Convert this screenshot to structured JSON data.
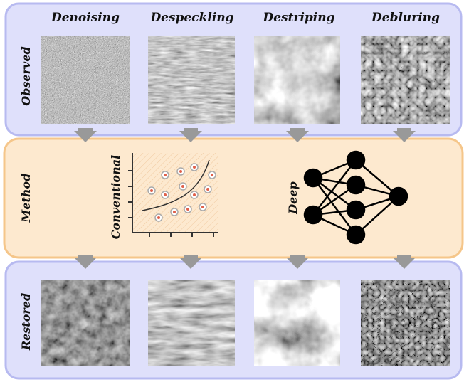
{
  "columns": [
    "Denoising",
    "Despeckling",
    "Destriping",
    "Debluring"
  ],
  "rows": {
    "observed": "Observed",
    "method": "Method",
    "restored": "Restored"
  },
  "method": {
    "conventional": "Conventional",
    "deep": "Deep"
  }
}
